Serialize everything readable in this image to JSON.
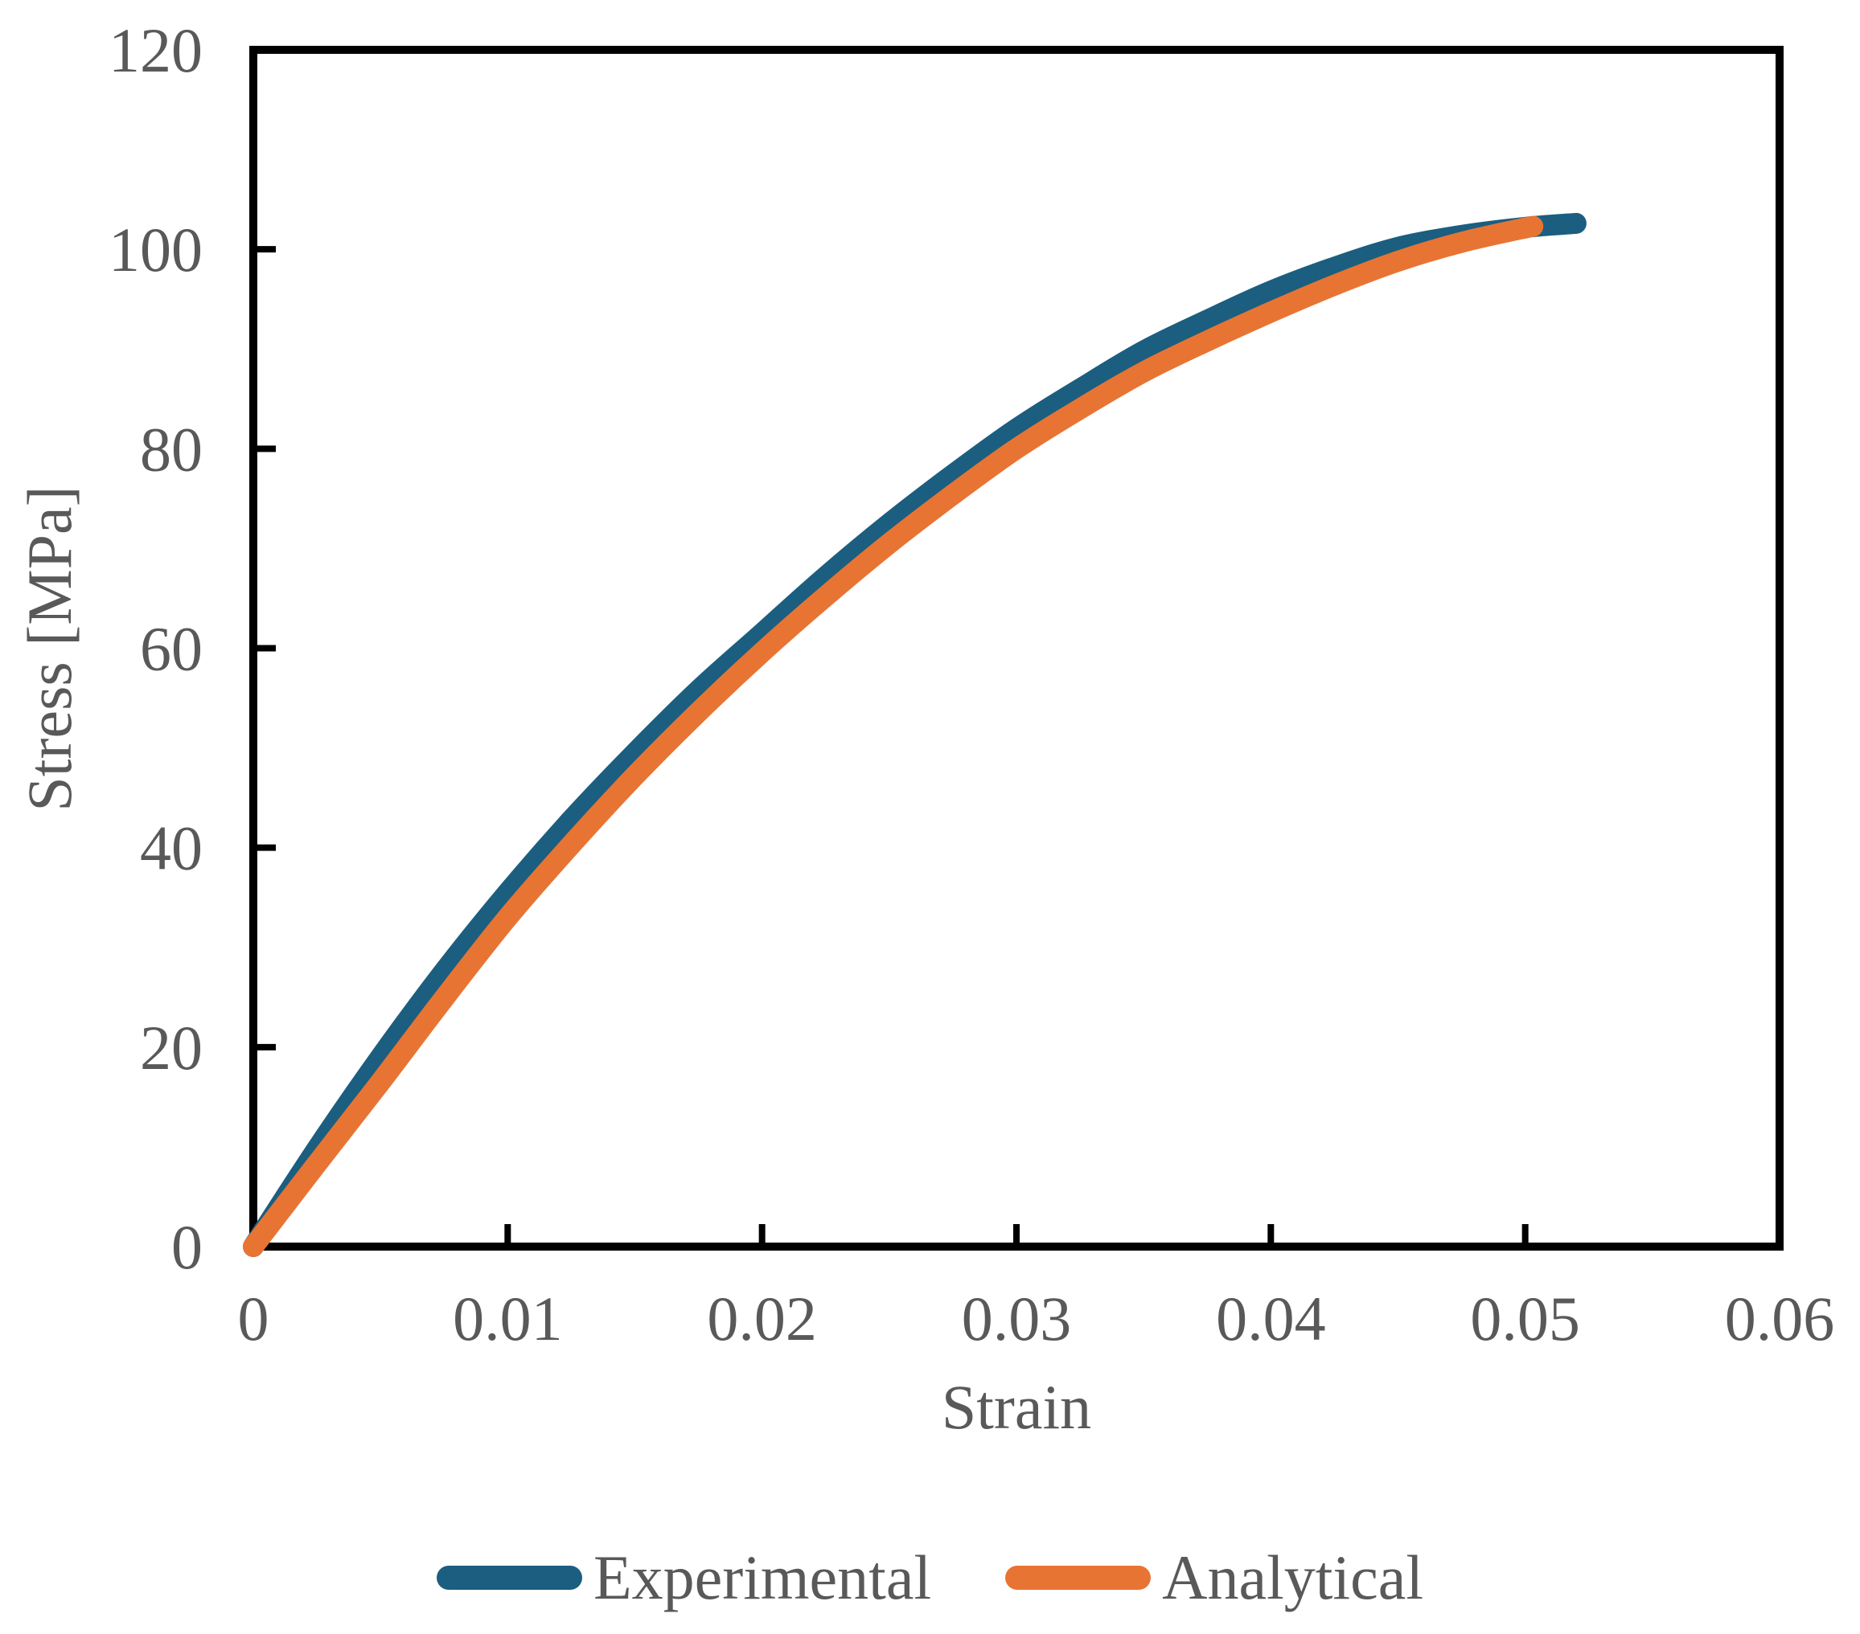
{
  "figure": {
    "background": "#ffffff",
    "axis_color": "#000000",
    "tick_label_color": "#595959"
  },
  "chart_data": {
    "type": "line",
    "title": "",
    "xlabel": "Strain",
    "ylabel": "Stress [MPa]",
    "xlim": [
      0,
      0.06
    ],
    "ylim": [
      0,
      120
    ],
    "grid": false,
    "legend_position": "bottom-center",
    "x_ticks": {
      "values": [
        0,
        0.01,
        0.02,
        0.03,
        0.04,
        0.05,
        0.06
      ],
      "labels": [
        "0",
        "0.01",
        "0.02",
        "0.03",
        "0.04",
        "0.05",
        "0.06"
      ]
    },
    "y_ticks": {
      "values": [
        0,
        20,
        40,
        60,
        80,
        100,
        120
      ],
      "labels": [
        "0",
        "20",
        "40",
        "60",
        "80",
        "100",
        "120"
      ]
    },
    "series": [
      {
        "name": "Experimental",
        "color": "#1B5E80",
        "points": [
          [
            0,
            0
          ],
          [
            0.0025,
            9.8
          ],
          [
            0.005,
            19.0
          ],
          [
            0.0075,
            27.6
          ],
          [
            0.01,
            35.5
          ],
          [
            0.0125,
            42.8
          ],
          [
            0.015,
            49.5
          ],
          [
            0.0175,
            55.8
          ],
          [
            0.02,
            61.5
          ],
          [
            0.0225,
            67.2
          ],
          [
            0.025,
            72.5
          ],
          [
            0.0275,
            77.4
          ],
          [
            0.03,
            82.0
          ],
          [
            0.0325,
            86.0
          ],
          [
            0.035,
            89.8
          ],
          [
            0.0375,
            92.9
          ],
          [
            0.04,
            95.8
          ],
          [
            0.0425,
            98.2
          ],
          [
            0.045,
            100.2
          ],
          [
            0.0475,
            101.4
          ],
          [
            0.05,
            102.2
          ],
          [
            0.052,
            102.6
          ]
        ]
      },
      {
        "name": "Analytical",
        "color": "#E87433",
        "points": [
          [
            0,
            0
          ],
          [
            0.0025,
            8.3
          ],
          [
            0.005,
            16.5
          ],
          [
            0.0075,
            24.9
          ],
          [
            0.01,
            33.0
          ],
          [
            0.0125,
            40.3
          ],
          [
            0.015,
            47.2
          ],
          [
            0.0175,
            53.6
          ],
          [
            0.02,
            59.6
          ],
          [
            0.0225,
            65.2
          ],
          [
            0.025,
            70.5
          ],
          [
            0.0275,
            75.4
          ],
          [
            0.03,
            80.0
          ],
          [
            0.0325,
            84.0
          ],
          [
            0.035,
            87.7
          ],
          [
            0.0375,
            90.8
          ],
          [
            0.04,
            93.7
          ],
          [
            0.0425,
            96.4
          ],
          [
            0.045,
            98.8
          ],
          [
            0.0475,
            100.7
          ],
          [
            0.0503,
            102.3
          ]
        ]
      }
    ]
  }
}
